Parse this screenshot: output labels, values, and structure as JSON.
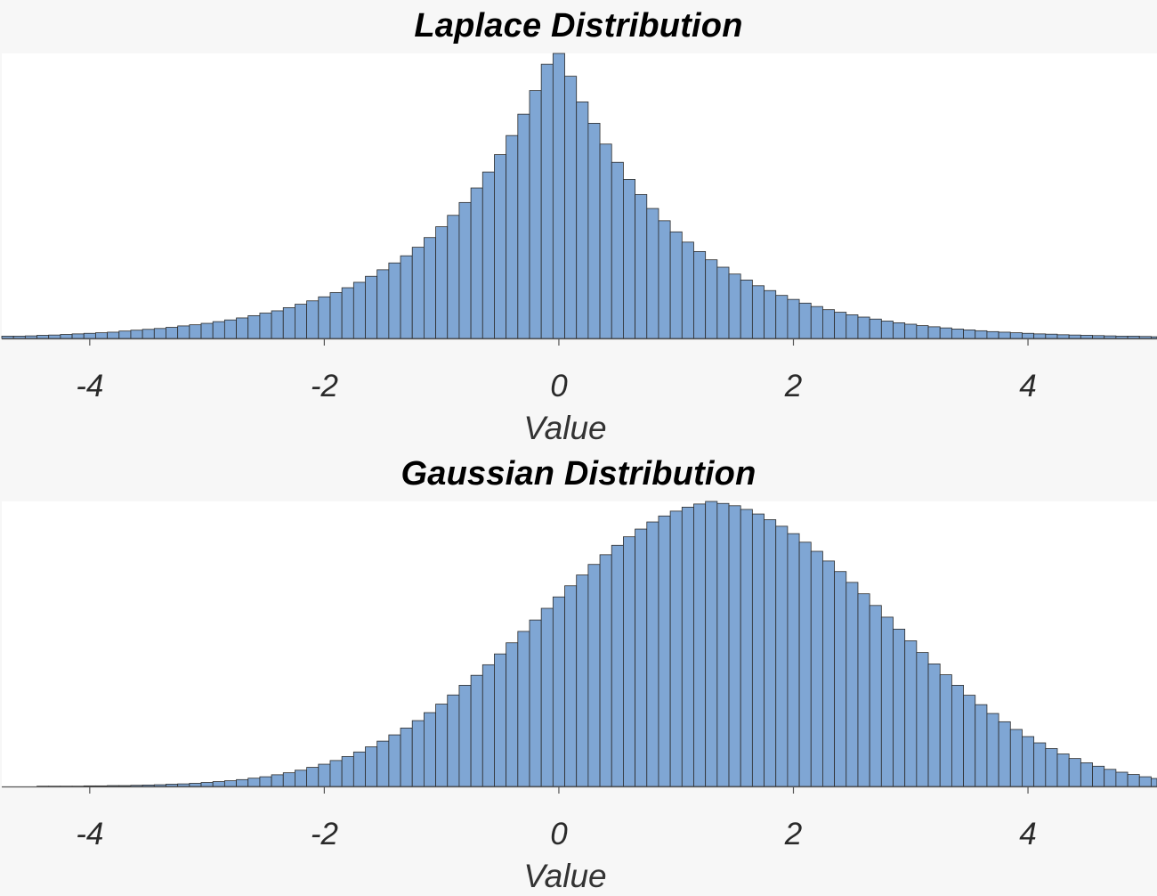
{
  "colors": {
    "bar_fill": "#7fa6d4",
    "bar_edge": "#2b2b2b",
    "axis": "#555555",
    "plot_background": "#ffffff"
  },
  "chart_data": [
    {
      "type": "bar",
      "subtype": "histogram",
      "title": "Laplace Distribution",
      "xlabel": "Value",
      "ylabel": "",
      "xlim": [
        -4.75,
        5.1
      ],
      "ylim": [
        0,
        1.0
      ],
      "y_ticks_shown": false,
      "grid": false,
      "x_ticks": [
        -4,
        -2,
        0,
        2,
        4
      ],
      "x_tick_labels": [
        "-4",
        "-2",
        "0",
        "2",
        "4"
      ],
      "bin_start": -4.75,
      "bin_width": 0.1,
      "values": [
        0.008,
        0.008,
        0.009,
        0.011,
        0.012,
        0.014,
        0.016,
        0.018,
        0.02,
        0.022,
        0.026,
        0.029,
        0.032,
        0.035,
        0.039,
        0.044,
        0.048,
        0.053,
        0.059,
        0.065,
        0.072,
        0.08,
        0.089,
        0.097,
        0.108,
        0.12,
        0.132,
        0.146,
        0.161,
        0.178,
        0.197,
        0.218,
        0.241,
        0.265,
        0.29,
        0.32,
        0.354,
        0.392,
        0.432,
        0.477,
        0.528,
        0.584,
        0.645,
        0.712,
        0.787,
        0.87,
        0.962,
        1.0,
        0.92,
        0.83,
        0.755,
        0.682,
        0.618,
        0.558,
        0.505,
        0.456,
        0.413,
        0.374,
        0.338,
        0.305,
        0.276,
        0.25,
        0.226,
        0.205,
        0.185,
        0.168,
        0.151,
        0.137,
        0.124,
        0.112,
        0.101,
        0.092,
        0.083,
        0.075,
        0.068,
        0.061,
        0.055,
        0.05,
        0.045,
        0.041,
        0.037,
        0.033,
        0.03,
        0.027,
        0.024,
        0.022,
        0.02,
        0.018,
        0.016,
        0.015,
        0.013,
        0.012,
        0.011,
        0.01,
        0.009,
        0.008,
        0.008,
        0.007,
        0.006
      ]
    },
    {
      "type": "bar",
      "subtype": "histogram",
      "title": "Gaussian Distribution",
      "xlabel": "Value",
      "ylabel": "",
      "xlim": [
        -4.75,
        5.1
      ],
      "ylim": [
        0,
        1.0
      ],
      "y_ticks_shown": false,
      "grid": false,
      "x_ticks": [
        -4,
        -2,
        0,
        2,
        4
      ],
      "x_tick_labels": [
        "-4",
        "-2",
        "0",
        "2",
        "4"
      ],
      "bin_start": -4.75,
      "bin_width": 0.1,
      "values": [
        0.0,
        0.0,
        0.0,
        0.001,
        0.001,
        0.001,
        0.001,
        0.002,
        0.002,
        0.003,
        0.003,
        0.004,
        0.005,
        0.006,
        0.008,
        0.009,
        0.011,
        0.014,
        0.017,
        0.02,
        0.024,
        0.029,
        0.034,
        0.041,
        0.048,
        0.057,
        0.067,
        0.078,
        0.091,
        0.105,
        0.121,
        0.139,
        0.159,
        0.181,
        0.205,
        0.231,
        0.259,
        0.289,
        0.321,
        0.355,
        0.39,
        0.427,
        0.465,
        0.504,
        0.544,
        0.584,
        0.625,
        0.665,
        0.704,
        0.742,
        0.779,
        0.813,
        0.846,
        0.876,
        0.903,
        0.928,
        0.949,
        0.966,
        0.98,
        0.991,
        1.0,
        0.993,
        0.985,
        0.972,
        0.956,
        0.936,
        0.913,
        0.887,
        0.857,
        0.825,
        0.791,
        0.754,
        0.716,
        0.676,
        0.635,
        0.594,
        0.552,
        0.511,
        0.47,
        0.43,
        0.392,
        0.355,
        0.32,
        0.287,
        0.256,
        0.227,
        0.2,
        0.175,
        0.153,
        0.133,
        0.114,
        0.098,
        0.083,
        0.071,
        0.06,
        0.05,
        0.042,
        0.034,
        0.028
      ]
    }
  ]
}
